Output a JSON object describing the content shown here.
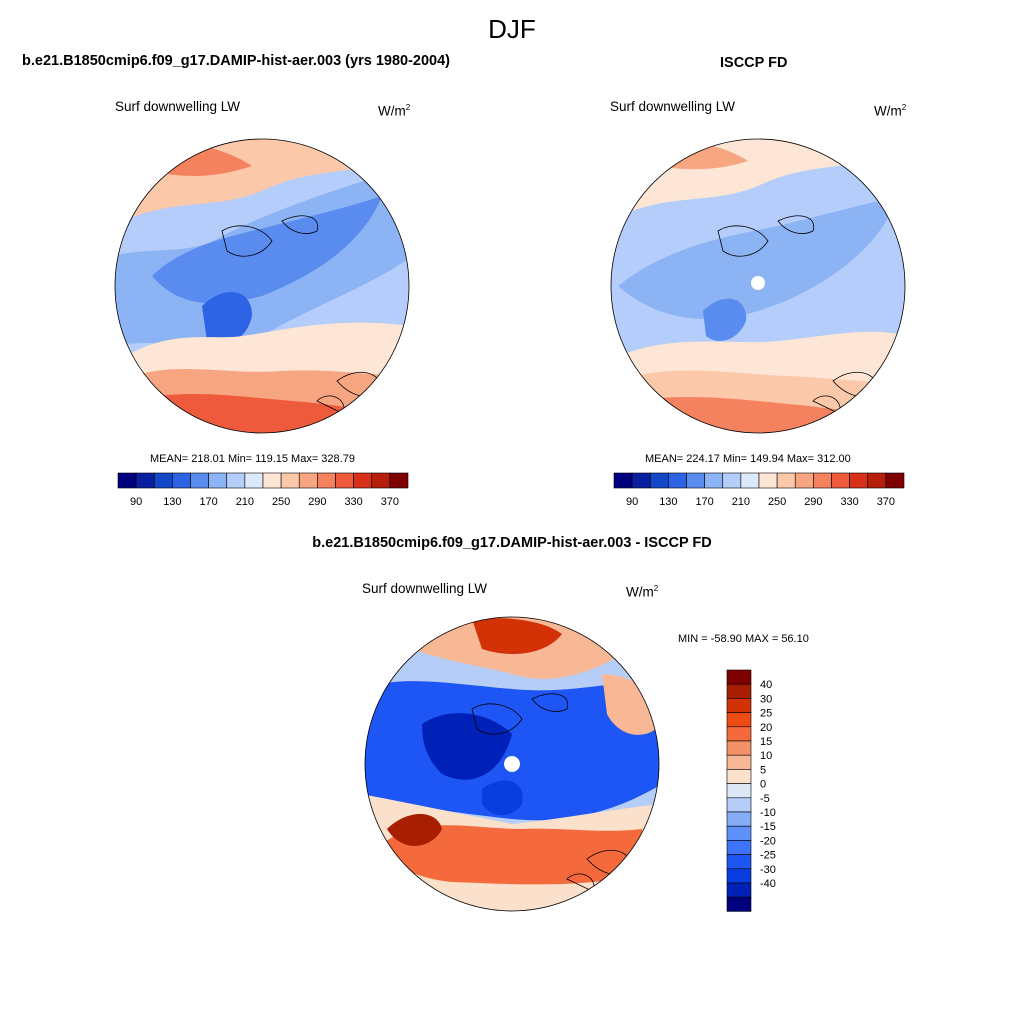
{
  "figure": {
    "title": "DJF",
    "top_left_title": "b.e21.B1850cmip6.f09_g17.DAMIP-hist-aer.003 (yrs 1980-2004)",
    "top_right_title": "ISCCP FD",
    "bottom_title": "b.e21.B1850cmip6.f09_g17.DAMIP-hist-aer.003 - ISCCP FD"
  },
  "colors": {
    "abs_scale": [
      "#00007f",
      "#0a1ea0",
      "#1446c8",
      "#2d64e6",
      "#5a8cf0",
      "#8cb4f5",
      "#b4cdfa",
      "#dce9fb",
      "#fde6d6",
      "#fbc8aa",
      "#f8a582",
      "#f5825f",
      "#ee5a3c",
      "#d73219",
      "#b41e0a",
      "#7f0000"
    ],
    "diff_scale": [
      "#00007f",
      "#0021b8",
      "#0a3de0",
      "#1e55f5",
      "#3c73fa",
      "#5f91fa",
      "#86adf7",
      "#b5cdf7",
      "#dde8f7",
      "#fbe0cc",
      "#f8b896",
      "#f59167",
      "#f46a3c",
      "#ee4a14",
      "#d23205",
      "#a81e00",
      "#7f0000"
    ]
  },
  "chart_data": [
    {
      "type": "heatmap",
      "projection": "north-polar-stereographic",
      "title": "b.e21.B1850cmip6.f09_g17.DAMIP-hist-aer.003 (yrs 1980-2004)",
      "left_label": "Surf downwelling LW",
      "units": "W/m2",
      "units_base": "W/m",
      "units_exp": "2",
      "stats_text": "MEAN= 218.01  Min= 119.15  Max= 328.79",
      "mean": 218.01,
      "min": 119.15,
      "max": 328.79,
      "colorbar": {
        "orientation": "horizontal",
        "levels": [
          80,
          90,
          100,
          110,
          120,
          130,
          140,
          150,
          160,
          170,
          180,
          190,
          200,
          210,
          220,
          230,
          240,
          250,
          260,
          270,
          280,
          290,
          300,
          310,
          320,
          330,
          340,
          350,
          360,
          370,
          380
        ],
        "tick_labels": [
          "90",
          "130",
          "170",
          "210",
          "250",
          "290",
          "330",
          "370"
        ]
      }
    },
    {
      "type": "heatmap",
      "projection": "north-polar-stereographic",
      "title": "ISCCP FD",
      "left_label": "Surf downwelling LW",
      "units": "W/m2",
      "units_base": "W/m",
      "units_exp": "2",
      "stats_text": "MEAN= 224.17  Min= 149.94  Max= 312.00",
      "mean": 224.17,
      "min": 149.94,
      "max": 312.0,
      "colorbar": {
        "orientation": "horizontal",
        "tick_labels": [
          "90",
          "130",
          "170",
          "210",
          "250",
          "290",
          "330",
          "370"
        ]
      }
    },
    {
      "type": "heatmap",
      "projection": "north-polar-stereographic",
      "title": "b.e21.B1850cmip6.f09_g17.DAMIP-hist-aer.003 - ISCCP FD",
      "left_label": "Surf downwelling LW",
      "units": "W/m2",
      "units_base": "W/m",
      "units_exp": "2",
      "stats_text": "MIN = -58.90 MAX =  56.10",
      "min": -58.9,
      "max": 56.1,
      "colorbar": {
        "orientation": "vertical",
        "levels": [
          -40,
          -30,
          -25,
          -20,
          -15,
          -10,
          -5,
          0,
          5,
          10,
          15,
          20,
          25,
          30,
          40
        ],
        "tick_labels": [
          "40",
          "30",
          "25",
          "20",
          "15",
          "10",
          "5",
          "0",
          "-5",
          "-10",
          "-15",
          "-20",
          "-25",
          "-30",
          "-40"
        ]
      }
    }
  ]
}
